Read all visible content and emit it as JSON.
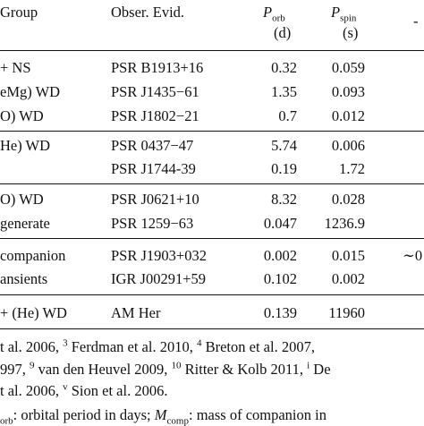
{
  "header": {
    "group": "Group",
    "evidence": "Obser. Evid.",
    "porb_symbol": "P",
    "porb_sub": "orb",
    "porb_unit": "(d)",
    "pspin_symbol": "P",
    "pspin_sub": "spin",
    "pspin_unit": "(s)",
    "last_col_fragment": "-"
  },
  "rows": [
    {
      "group": "+ NS",
      "evidence": "PSR B1913+16",
      "porb": "0.32",
      "pspin": "0.059"
    },
    {
      "group": "eMg) WD",
      "evidence": "PSR J1435−61",
      "porb": "1.35",
      "pspin": "0.093"
    },
    {
      "group": "O) WD",
      "evidence": "PSR J1802−21",
      "porb": "0.7",
      "pspin": "0.012"
    },
    {
      "group": "He) WD",
      "evidence": "PSR 0437−47",
      "porb": "5.74",
      "pspin": "0.006"
    },
    {
      "group": "",
      "evidence": "PSR J1744-39",
      "porb": "0.19",
      "pspin": "1.72"
    },
    {
      "group": "O) WD",
      "evidence": "PSR J0621+10",
      "porb": "8.32",
      "pspin": "0.028"
    },
    {
      "group": "generate",
      "evidence": "PSR 1259−63",
      "porb": "0.047",
      "pspin": "1236.9"
    },
    {
      "group": "companion",
      "evidence": "PSR J1903+032",
      "porb": "0.002",
      "pspin": "0.015",
      "extra": "∼0"
    },
    {
      "group": "ansients",
      "evidence": "IGR J00291+59",
      "porb": "0.102",
      "pspin": "0.002"
    },
    {
      "group": "+ (He) WD",
      "evidence": "AM Her",
      "porb": "0.139",
      "pspin": "11960"
    }
  ],
  "footnotes": {
    "line1_a": "t al. 2006,",
    "line1_sup1": "3",
    "line1_b": "Ferdman et al. 2010,",
    "line1_sup2": "4",
    "line1_c": "Breton et al. 2007,",
    "line2_a": "997,",
    "line2_sup1": "9",
    "line2_b": "van den Heuvel 2009,",
    "line2_sup2": "10",
    "line2_c": "Ritter & Kolb 2011,",
    "line2_sup3": "i",
    "line2_d": "De",
    "line3_a": "t al. 2006,",
    "line3_sup1": "v",
    "line3_b": "Sion et al. 2006.",
    "line4_sub": "orb",
    "line4_a": ": orbital period in days;",
    "line4_sym": "M",
    "line4_symsub": "comp",
    "line4_b": ": mass of companion in"
  }
}
